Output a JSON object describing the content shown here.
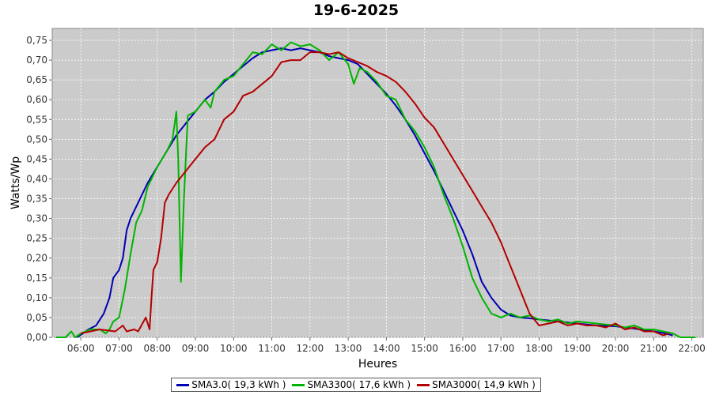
{
  "chart_data": {
    "type": "line",
    "title": "19-6-2025",
    "xlabel": "Heures",
    "ylabel": "Watts/Wp",
    "x_ticks": [
      "06:00",
      "07:00",
      "08:00",
      "09:00",
      "10:00",
      "11:00",
      "12:00",
      "13:00",
      "14:00",
      "15:00",
      "16:00",
      "17:00",
      "18:00",
      "19:00",
      "20:00",
      "21:00",
      "22:00"
    ],
    "y_ticks": [
      "0,00",
      "0,05",
      "0,10",
      "0,15",
      "0,20",
      "0,25",
      "0,30",
      "0,35",
      "0,40",
      "0,45",
      "0,50",
      "0,55",
      "0,60",
      "0,65",
      "0,70",
      "0,75"
    ],
    "xlim": [
      5.25,
      22.3
    ],
    "ylim": [
      0,
      0.78
    ],
    "grid": true,
    "legend_position": "bottom",
    "series": [
      {
        "name": "SMA3.0( 19,3 kWh )",
        "color": "#0000b4",
        "points": [
          [
            5.9,
            0
          ],
          [
            6.2,
            0.02
          ],
          [
            6.4,
            0.03
          ],
          [
            6.6,
            0.06
          ],
          [
            6.75,
            0.1
          ],
          [
            6.85,
            0.15
          ],
          [
            7.0,
            0.17
          ],
          [
            7.1,
            0.2
          ],
          [
            7.2,
            0.27
          ],
          [
            7.3,
            0.3
          ],
          [
            7.5,
            0.34
          ],
          [
            7.75,
            0.39
          ],
          [
            8.0,
            0.43
          ],
          [
            8.25,
            0.47
          ],
          [
            8.5,
            0.51
          ],
          [
            8.75,
            0.54
          ],
          [
            9.0,
            0.57
          ],
          [
            9.25,
            0.6
          ],
          [
            9.5,
            0.62
          ],
          [
            9.75,
            0.645
          ],
          [
            10.0,
            0.665
          ],
          [
            10.25,
            0.685
          ],
          [
            10.5,
            0.705
          ],
          [
            10.75,
            0.72
          ],
          [
            11.0,
            0.725
          ],
          [
            11.25,
            0.73
          ],
          [
            11.5,
            0.725
          ],
          [
            11.75,
            0.73
          ],
          [
            12.0,
            0.725
          ],
          [
            12.25,
            0.72
          ],
          [
            12.5,
            0.71
          ],
          [
            12.75,
            0.705
          ],
          [
            13.0,
            0.7
          ],
          [
            13.25,
            0.69
          ],
          [
            13.5,
            0.665
          ],
          [
            13.75,
            0.64
          ],
          [
            14.0,
            0.615
          ],
          [
            14.25,
            0.585
          ],
          [
            14.5,
            0.55
          ],
          [
            14.75,
            0.51
          ],
          [
            15.0,
            0.465
          ],
          [
            15.25,
            0.42
          ],
          [
            15.5,
            0.37
          ],
          [
            15.75,
            0.32
          ],
          [
            16.0,
            0.27
          ],
          [
            16.25,
            0.21
          ],
          [
            16.5,
            0.14
          ],
          [
            16.75,
            0.1
          ],
          [
            17.0,
            0.07
          ],
          [
            17.25,
            0.055
          ],
          [
            17.5,
            0.05
          ],
          [
            17.75,
            0.048
          ],
          [
            18.0,
            0.045
          ],
          [
            18.5,
            0.04
          ],
          [
            19.0,
            0.035
          ],
          [
            19.5,
            0.03
          ],
          [
            20.0,
            0.028
          ],
          [
            20.5,
            0.022
          ],
          [
            21.0,
            0.015
          ],
          [
            21.3,
            0.01
          ],
          [
            21.5,
            0.005
          ]
        ]
      },
      {
        "name": "SMA3300( 17,6 kWh )",
        "color": "#00b400",
        "points": [
          [
            5.35,
            0
          ],
          [
            5.6,
            0
          ],
          [
            5.75,
            0.015
          ],
          [
            5.85,
            0
          ],
          [
            6.0,
            0.01
          ],
          [
            6.25,
            0.02
          ],
          [
            6.5,
            0.02
          ],
          [
            6.65,
            0.01
          ],
          [
            6.75,
            0.02
          ],
          [
            6.85,
            0.04
          ],
          [
            7.0,
            0.05
          ],
          [
            7.15,
            0.12
          ],
          [
            7.3,
            0.21
          ],
          [
            7.45,
            0.29
          ],
          [
            7.6,
            0.32
          ],
          [
            7.75,
            0.38
          ],
          [
            8.0,
            0.43
          ],
          [
            8.25,
            0.47
          ],
          [
            8.4,
            0.5
          ],
          [
            8.5,
            0.57
          ],
          [
            8.55,
            0.45
          ],
          [
            8.62,
            0.14
          ],
          [
            8.7,
            0.35
          ],
          [
            8.8,
            0.56
          ],
          [
            9.0,
            0.57
          ],
          [
            9.25,
            0.6
          ],
          [
            9.4,
            0.58
          ],
          [
            9.5,
            0.62
          ],
          [
            9.75,
            0.65
          ],
          [
            10.0,
            0.66
          ],
          [
            10.25,
            0.69
          ],
          [
            10.5,
            0.72
          ],
          [
            10.75,
            0.715
          ],
          [
            11.0,
            0.74
          ],
          [
            11.25,
            0.725
          ],
          [
            11.5,
            0.745
          ],
          [
            11.75,
            0.735
          ],
          [
            12.0,
            0.74
          ],
          [
            12.25,
            0.725
          ],
          [
            12.5,
            0.7
          ],
          [
            12.75,
            0.72
          ],
          [
            13.0,
            0.69
          ],
          [
            13.15,
            0.64
          ],
          [
            13.3,
            0.68
          ],
          [
            13.5,
            0.67
          ],
          [
            13.75,
            0.645
          ],
          [
            14.0,
            0.61
          ],
          [
            14.25,
            0.6
          ],
          [
            14.5,
            0.55
          ],
          [
            14.75,
            0.52
          ],
          [
            15.0,
            0.48
          ],
          [
            15.25,
            0.43
          ],
          [
            15.5,
            0.36
          ],
          [
            15.75,
            0.3
          ],
          [
            16.0,
            0.23
          ],
          [
            16.25,
            0.15
          ],
          [
            16.5,
            0.1
          ],
          [
            16.75,
            0.06
          ],
          [
            17.0,
            0.05
          ],
          [
            17.25,
            0.06
          ],
          [
            17.5,
            0.05
          ],
          [
            17.75,
            0.055
          ],
          [
            18.0,
            0.045
          ],
          [
            18.25,
            0.04
          ],
          [
            18.5,
            0.045
          ],
          [
            18.75,
            0.035
          ],
          [
            19.0,
            0.04
          ],
          [
            19.5,
            0.035
          ],
          [
            20.0,
            0.03
          ],
          [
            20.25,
            0.025
          ],
          [
            20.5,
            0.03
          ],
          [
            20.75,
            0.02
          ],
          [
            21.0,
            0.02
          ],
          [
            21.25,
            0.015
          ],
          [
            21.5,
            0.01
          ],
          [
            21.7,
            0
          ],
          [
            22.1,
            0
          ]
        ]
      },
      {
        "name": "SMA3000( 14,9 kWh )",
        "color": "#b40000",
        "points": [
          [
            6.0,
            0.01
          ],
          [
            6.5,
            0.02
          ],
          [
            6.9,
            0.015
          ],
          [
            7.1,
            0.03
          ],
          [
            7.2,
            0.015
          ],
          [
            7.4,
            0.02
          ],
          [
            7.5,
            0.015
          ],
          [
            7.7,
            0.05
          ],
          [
            7.8,
            0.02
          ],
          [
            7.85,
            0.1
          ],
          [
            7.9,
            0.17
          ],
          [
            8.0,
            0.19
          ],
          [
            8.1,
            0.25
          ],
          [
            8.2,
            0.34
          ],
          [
            8.3,
            0.36
          ],
          [
            8.5,
            0.39
          ],
          [
            8.75,
            0.42
          ],
          [
            9.0,
            0.45
          ],
          [
            9.25,
            0.48
          ],
          [
            9.5,
            0.5
          ],
          [
            9.75,
            0.55
          ],
          [
            10.0,
            0.57
          ],
          [
            10.25,
            0.61
          ],
          [
            10.5,
            0.62
          ],
          [
            10.75,
            0.64
          ],
          [
            11.0,
            0.66
          ],
          [
            11.25,
            0.695
          ],
          [
            11.5,
            0.7
          ],
          [
            11.75,
            0.7
          ],
          [
            12.0,
            0.72
          ],
          [
            12.25,
            0.72
          ],
          [
            12.5,
            0.715
          ],
          [
            12.75,
            0.72
          ],
          [
            13.0,
            0.705
          ],
          [
            13.25,
            0.695
          ],
          [
            13.5,
            0.685
          ],
          [
            13.75,
            0.67
          ],
          [
            14.0,
            0.66
          ],
          [
            14.25,
            0.645
          ],
          [
            14.5,
            0.62
          ],
          [
            14.75,
            0.59
          ],
          [
            15.0,
            0.555
          ],
          [
            15.25,
            0.53
          ],
          [
            15.5,
            0.49
          ],
          [
            15.75,
            0.45
          ],
          [
            16.0,
            0.41
          ],
          [
            16.25,
            0.37
          ],
          [
            16.5,
            0.33
          ],
          [
            16.75,
            0.29
          ],
          [
            17.0,
            0.24
          ],
          [
            17.25,
            0.18
          ],
          [
            17.5,
            0.12
          ],
          [
            17.75,
            0.06
          ],
          [
            18.0,
            0.03
          ],
          [
            18.25,
            0.035
          ],
          [
            18.5,
            0.04
          ],
          [
            18.75,
            0.03
          ],
          [
            19.0,
            0.035
          ],
          [
            19.25,
            0.03
          ],
          [
            19.5,
            0.03
          ],
          [
            19.75,
            0.025
          ],
          [
            20.0,
            0.035
          ],
          [
            20.25,
            0.02
          ],
          [
            20.5,
            0.025
          ],
          [
            20.75,
            0.015
          ],
          [
            21.0,
            0.015
          ],
          [
            21.25,
            0.005
          ],
          [
            21.4,
            0.01
          ]
        ]
      }
    ]
  },
  "legend": {
    "items": [
      {
        "label": "SMA3.0( 19,3 kWh )",
        "color": "#0000b4"
      },
      {
        "label": "SMA3300( 17,6 kWh )",
        "color": "#00b400"
      },
      {
        "label": "SMA3000( 14,9 kWh )",
        "color": "#b40000"
      }
    ]
  }
}
